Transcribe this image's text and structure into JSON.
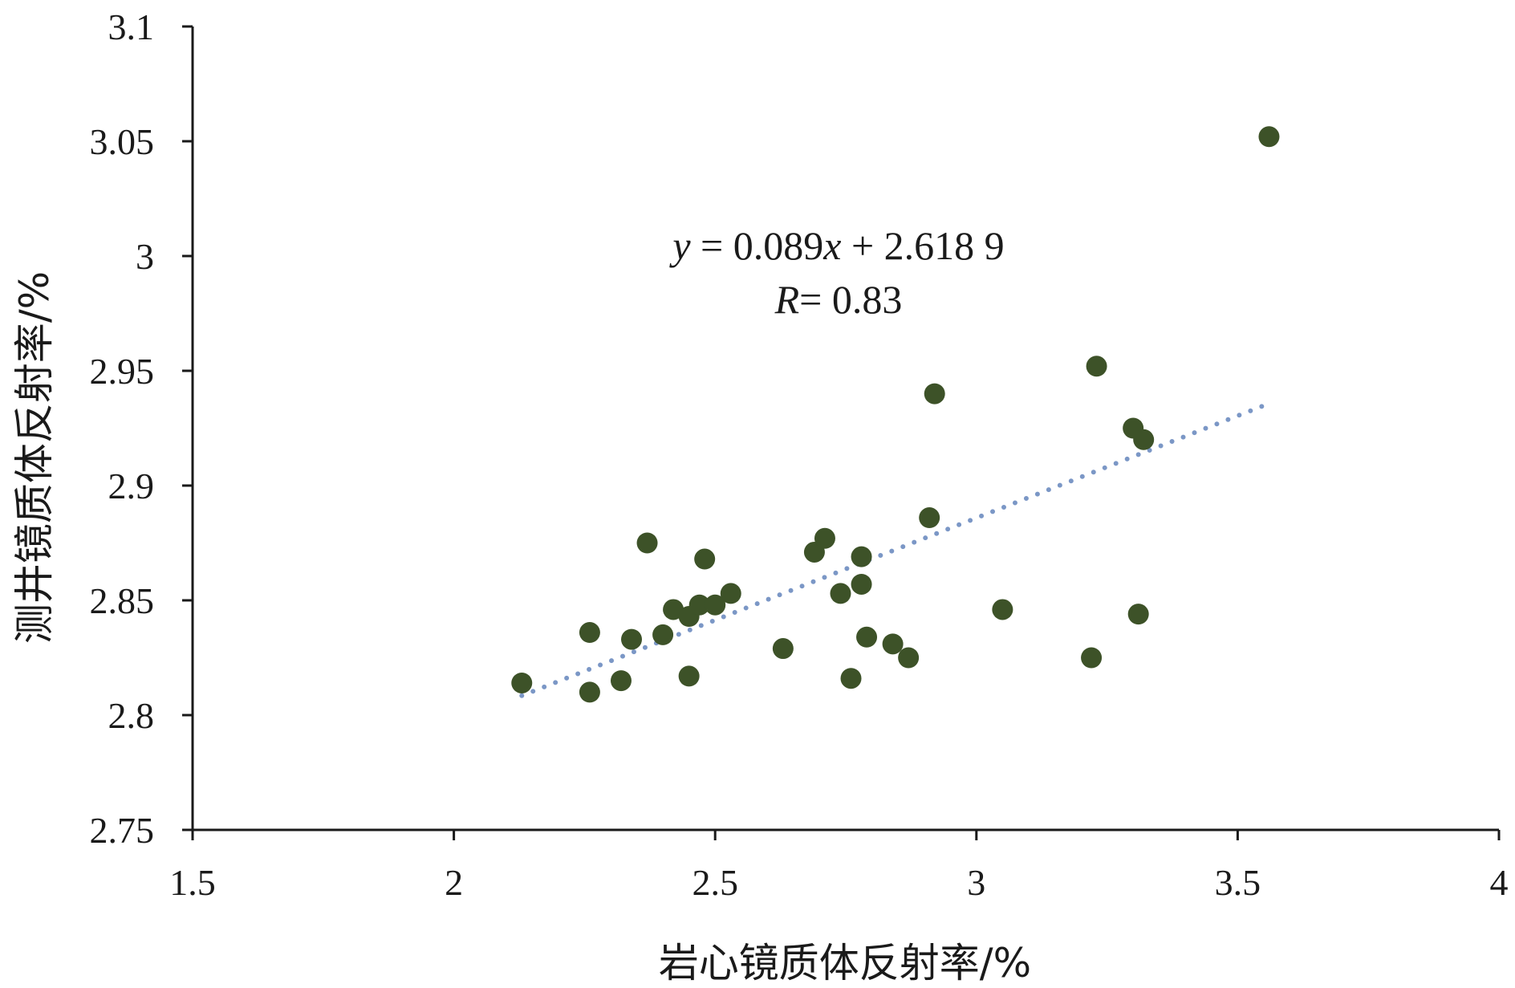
{
  "chart_data": {
    "type": "scatter",
    "xlabel": "岩心镜质体反射率/%",
    "ylabel": "测井镜质体反射率/%",
    "xlim": [
      1.5,
      4
    ],
    "ylim": [
      2.75,
      3.1
    ],
    "x_ticks": [
      "1.5",
      "2",
      "2.5",
      "3",
      "3.5",
      "4"
    ],
    "y_ticks": [
      "2.75",
      "2.8",
      "2.85",
      "2.9",
      "2.95",
      "3",
      "3.05",
      "3.1"
    ],
    "grid": false,
    "legend": "none",
    "annotation": {
      "equation": {
        "y": "y",
        "eq": " = 0.089",
        "x": "x",
        "rest": " + 2.618 9"
      },
      "r": {
        "label": "R",
        "value": "= 0.83"
      }
    },
    "trendline": {
      "slope": 0.089,
      "intercept": 2.6189,
      "x_range": [
        2.13,
        3.56
      ],
      "style": "dotted"
    },
    "series": [
      {
        "points": [
          [
            2.13,
            2.814
          ],
          [
            2.26,
            2.81
          ],
          [
            2.26,
            2.836
          ],
          [
            2.32,
            2.815
          ],
          [
            2.34,
            2.833
          ],
          [
            2.37,
            2.875
          ],
          [
            2.4,
            2.835
          ],
          [
            2.42,
            2.846
          ],
          [
            2.45,
            2.817
          ],
          [
            2.45,
            2.843
          ],
          [
            2.47,
            2.848
          ],
          [
            2.48,
            2.868
          ],
          [
            2.5,
            2.848
          ],
          [
            2.53,
            2.853
          ],
          [
            2.63,
            2.829
          ],
          [
            2.69,
            2.871
          ],
          [
            2.71,
            2.877
          ],
          [
            2.74,
            2.853
          ],
          [
            2.76,
            2.816
          ],
          [
            2.78,
            2.869
          ],
          [
            2.78,
            2.857
          ],
          [
            2.79,
            2.834
          ],
          [
            2.84,
            2.831
          ],
          [
            2.87,
            2.825
          ],
          [
            2.91,
            2.886
          ],
          [
            2.92,
            2.94
          ],
          [
            3.05,
            2.846
          ],
          [
            3.22,
            2.825
          ],
          [
            3.23,
            2.952
          ],
          [
            3.3,
            2.925
          ],
          [
            3.31,
            2.844
          ],
          [
            3.32,
            2.92
          ],
          [
            3.56,
            3.052
          ]
        ]
      }
    ],
    "colors": {
      "point": "#3d5228",
      "trendline": "#7b97c6",
      "axis": "#1a1a1a"
    }
  }
}
